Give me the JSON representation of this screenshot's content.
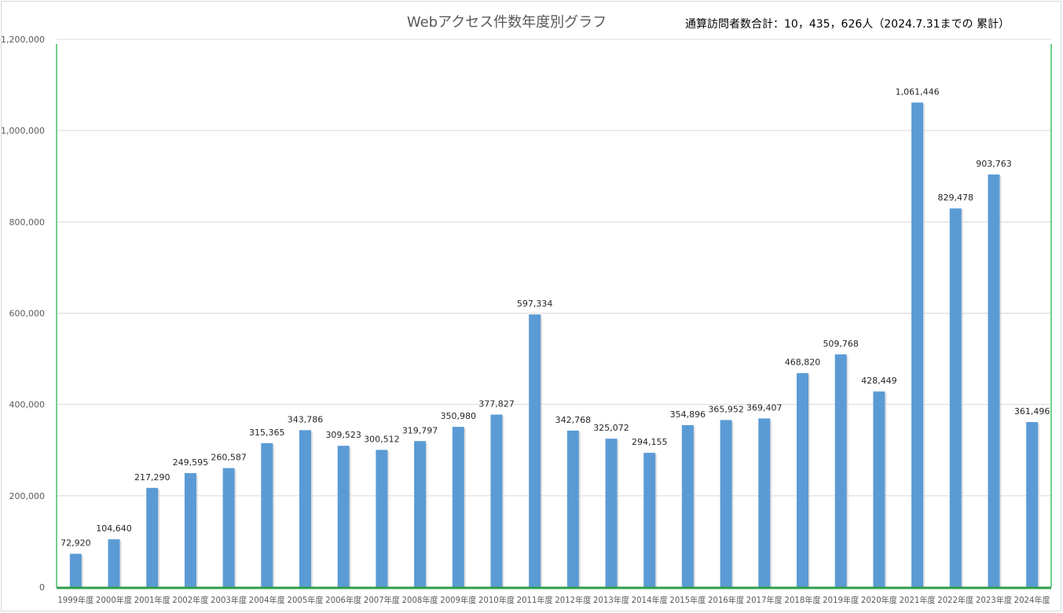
{
  "chart_data": {
    "type": "bar",
    "title": "Webアクセス件数年度別グラフ",
    "annotation": "通算訪問者数合計：10，435，626人（2024.7.31までの 累計）",
    "categories": [
      "1999年度",
      "2000年度",
      "2001年度",
      "2002年度",
      "2003年度",
      "2004年度",
      "2005年度",
      "2006年度",
      "2007年度",
      "2008年度",
      "2009年度",
      "2010年度",
      "2011年度",
      "2012年度",
      "2013年度",
      "2014年度",
      "2015年度",
      "2016年度",
      "2017年度",
      "2018年度",
      "2019年度",
      "2020年度",
      "2021年度",
      "2022年度",
      "2023年度",
      "2024年度"
    ],
    "values": [
      72920,
      104640,
      217290,
      249595,
      260587,
      315365,
      343786,
      309523,
      300512,
      319797,
      350980,
      377827,
      597334,
      342768,
      325072,
      294155,
      354896,
      365952,
      369407,
      468820,
      509768,
      428449,
      1061446,
      829478,
      903763,
      361496
    ],
    "ylim": [
      0,
      1200000
    ],
    "yticks": [
      0,
      200000,
      400000,
      600000,
      800000,
      1000000,
      1200000
    ],
    "ytick_labels": [
      "0",
      "200,000",
      "400,000",
      "600,000",
      "800,000",
      "1,000,000",
      "1,200,000"
    ],
    "data_labels": true,
    "grid": true,
    "bar_color": "#5b9bd5",
    "frame_color": "#6fd08c",
    "baseline_color": "#2e9e4a"
  }
}
